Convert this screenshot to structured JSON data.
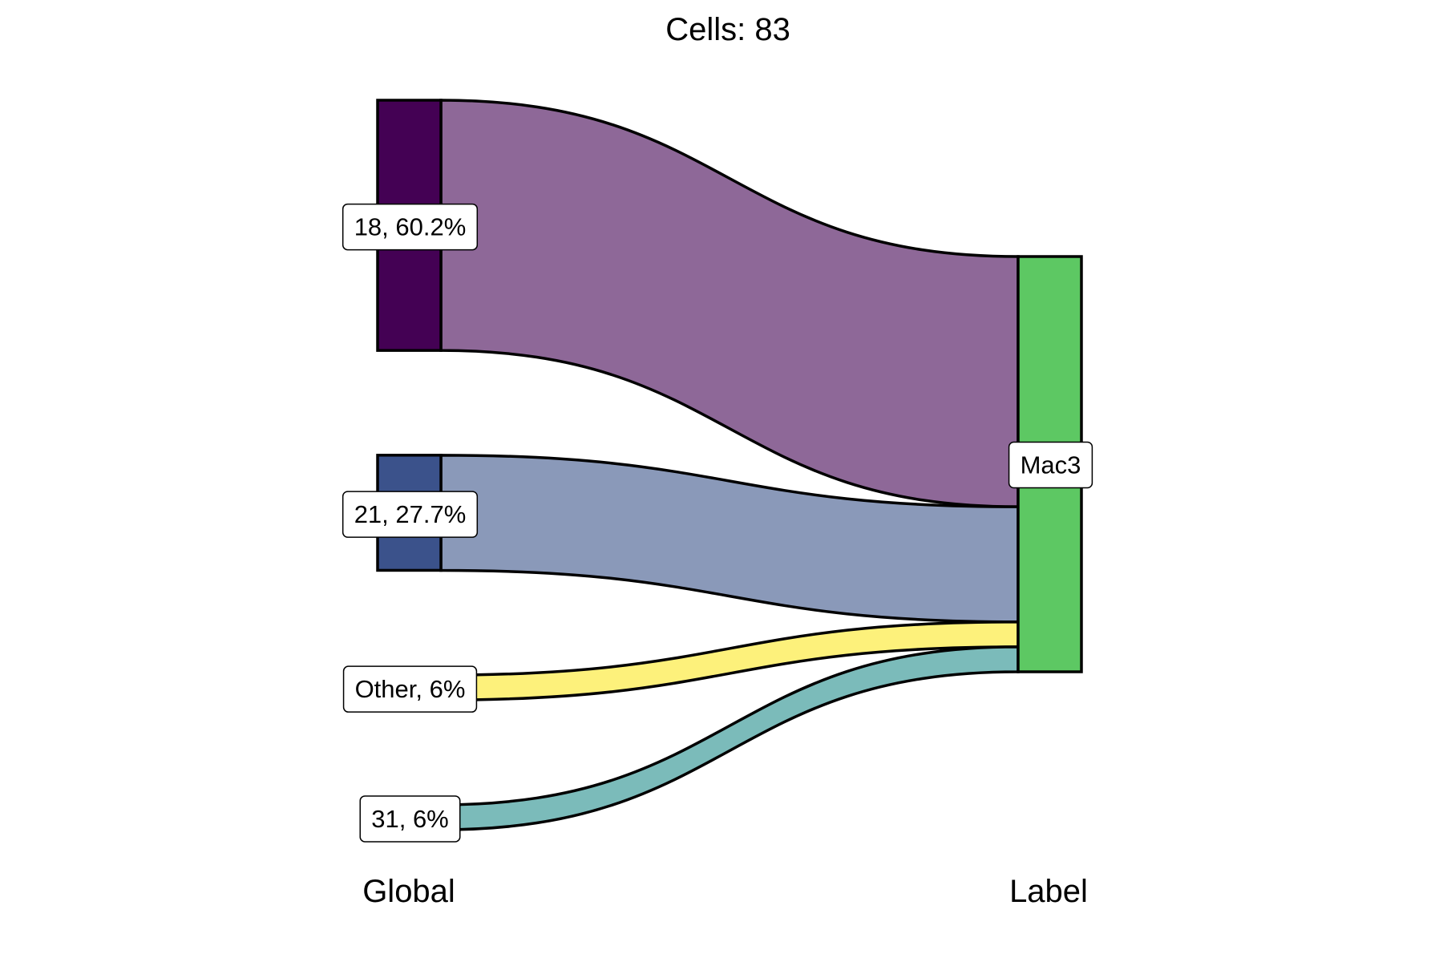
{
  "chart_data": {
    "type": "sankey",
    "title": "Cells:  83",
    "axes": [
      "Global",
      "Label"
    ],
    "total_cells": 83,
    "source_nodes": [
      {
        "id": "18",
        "label": "18, 60.2%",
        "percent": 60.2,
        "color": "#440154"
      },
      {
        "id": "21",
        "label": "21, 27.7%",
        "percent": 27.7,
        "color": "#3B528B"
      },
      {
        "id": "Other",
        "label": "Other, 6%",
        "percent": 6,
        "color": "#FDE725"
      },
      {
        "id": "31",
        "label": "31, 6%",
        "percent": 6,
        "color": "#21908C"
      }
    ],
    "target_nodes": [
      {
        "id": "Mac3",
        "label": "Mac3",
        "percent": 100,
        "color": "#5DC863"
      }
    ],
    "flows": [
      {
        "from": "18",
        "to": "Mac3",
        "percent": 60.2,
        "color": "#8E6898"
      },
      {
        "from": "21",
        "to": "Mac3",
        "percent": 27.7,
        "color": "#8A99B9"
      },
      {
        "from": "Other",
        "to": "Mac3",
        "percent": 6,
        "color": "#FDF17B"
      },
      {
        "from": "31",
        "to": "Mac3",
        "percent": 6,
        "color": "#7BBBBA"
      }
    ]
  }
}
